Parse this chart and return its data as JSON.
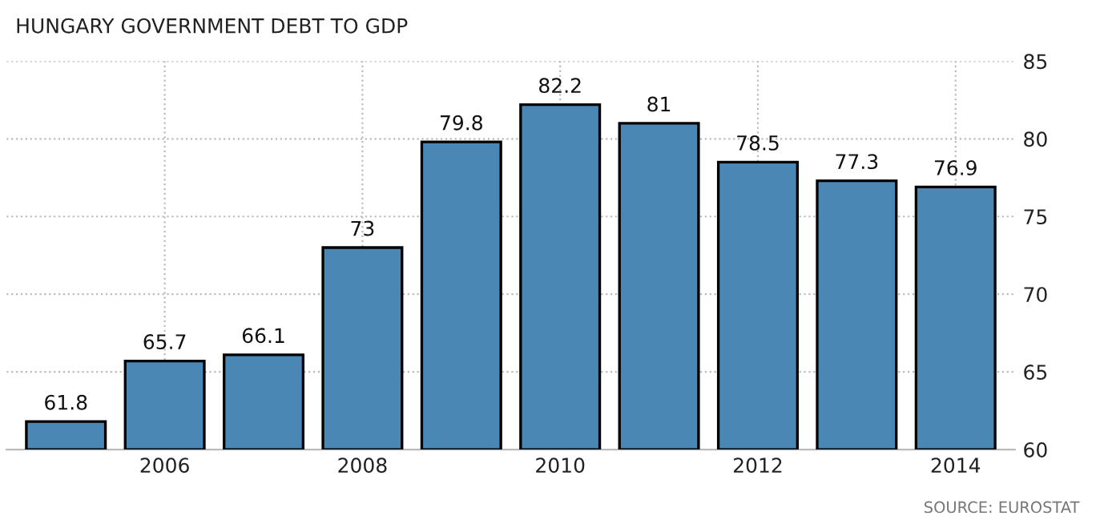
{
  "chart_data": {
    "type": "bar",
    "title": "HUNGARY GOVERNMENT DEBT TO GDP",
    "categories": [
      null,
      "2006",
      null,
      "2008",
      null,
      "2010",
      null,
      "2012",
      null,
      "2014"
    ],
    "values": [
      61.8,
      65.7,
      66.1,
      73,
      79.8,
      82.2,
      81,
      78.5,
      77.3,
      76.9
    ],
    "color": "#4a87b5",
    "data_labels": true,
    "ylim": [
      60,
      85
    ],
    "yticks": [
      60,
      65,
      70,
      75,
      80,
      85
    ],
    "grid": true,
    "annotations": [
      "SOURCE: EUROSTAT"
    ]
  }
}
